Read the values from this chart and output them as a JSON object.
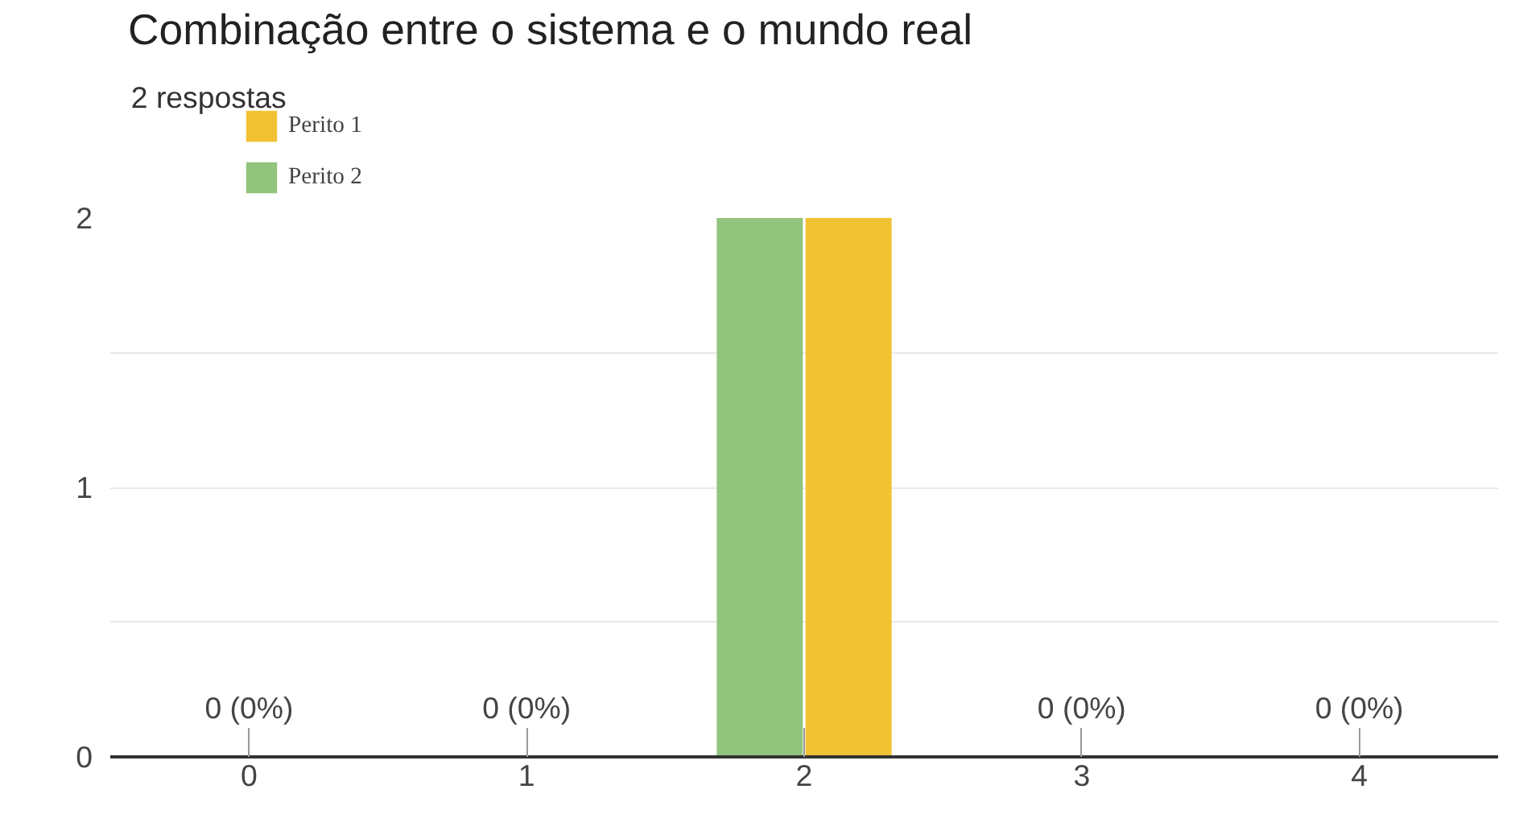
{
  "chart_data": {
    "type": "bar",
    "title": "Combinação entre o sistema e o mundo real",
    "subtitle": "2 respostas",
    "categories": [
      "0",
      "1",
      "2",
      "3",
      "4"
    ],
    "series": [
      {
        "name": "Perito 1",
        "color": "#f1c232",
        "values": [
          0,
          0,
          2,
          0,
          0
        ],
        "value_labels": [
          "0 (0%)",
          "0 (0%)",
          null,
          "0 (0%)",
          "0 (0%)"
        ]
      },
      {
        "name": "Perito 2",
        "color": "#93c47d",
        "values": [
          0,
          0,
          2,
          0,
          0
        ]
      }
    ],
    "ylim": [
      0,
      2
    ],
    "yticks": [
      0,
      {
        "value": 0.5,
        "label": null
      },
      1,
      {
        "value": 1.5,
        "label": null
      },
      2
    ],
    "grid": "y",
    "legend": "top left"
  }
}
